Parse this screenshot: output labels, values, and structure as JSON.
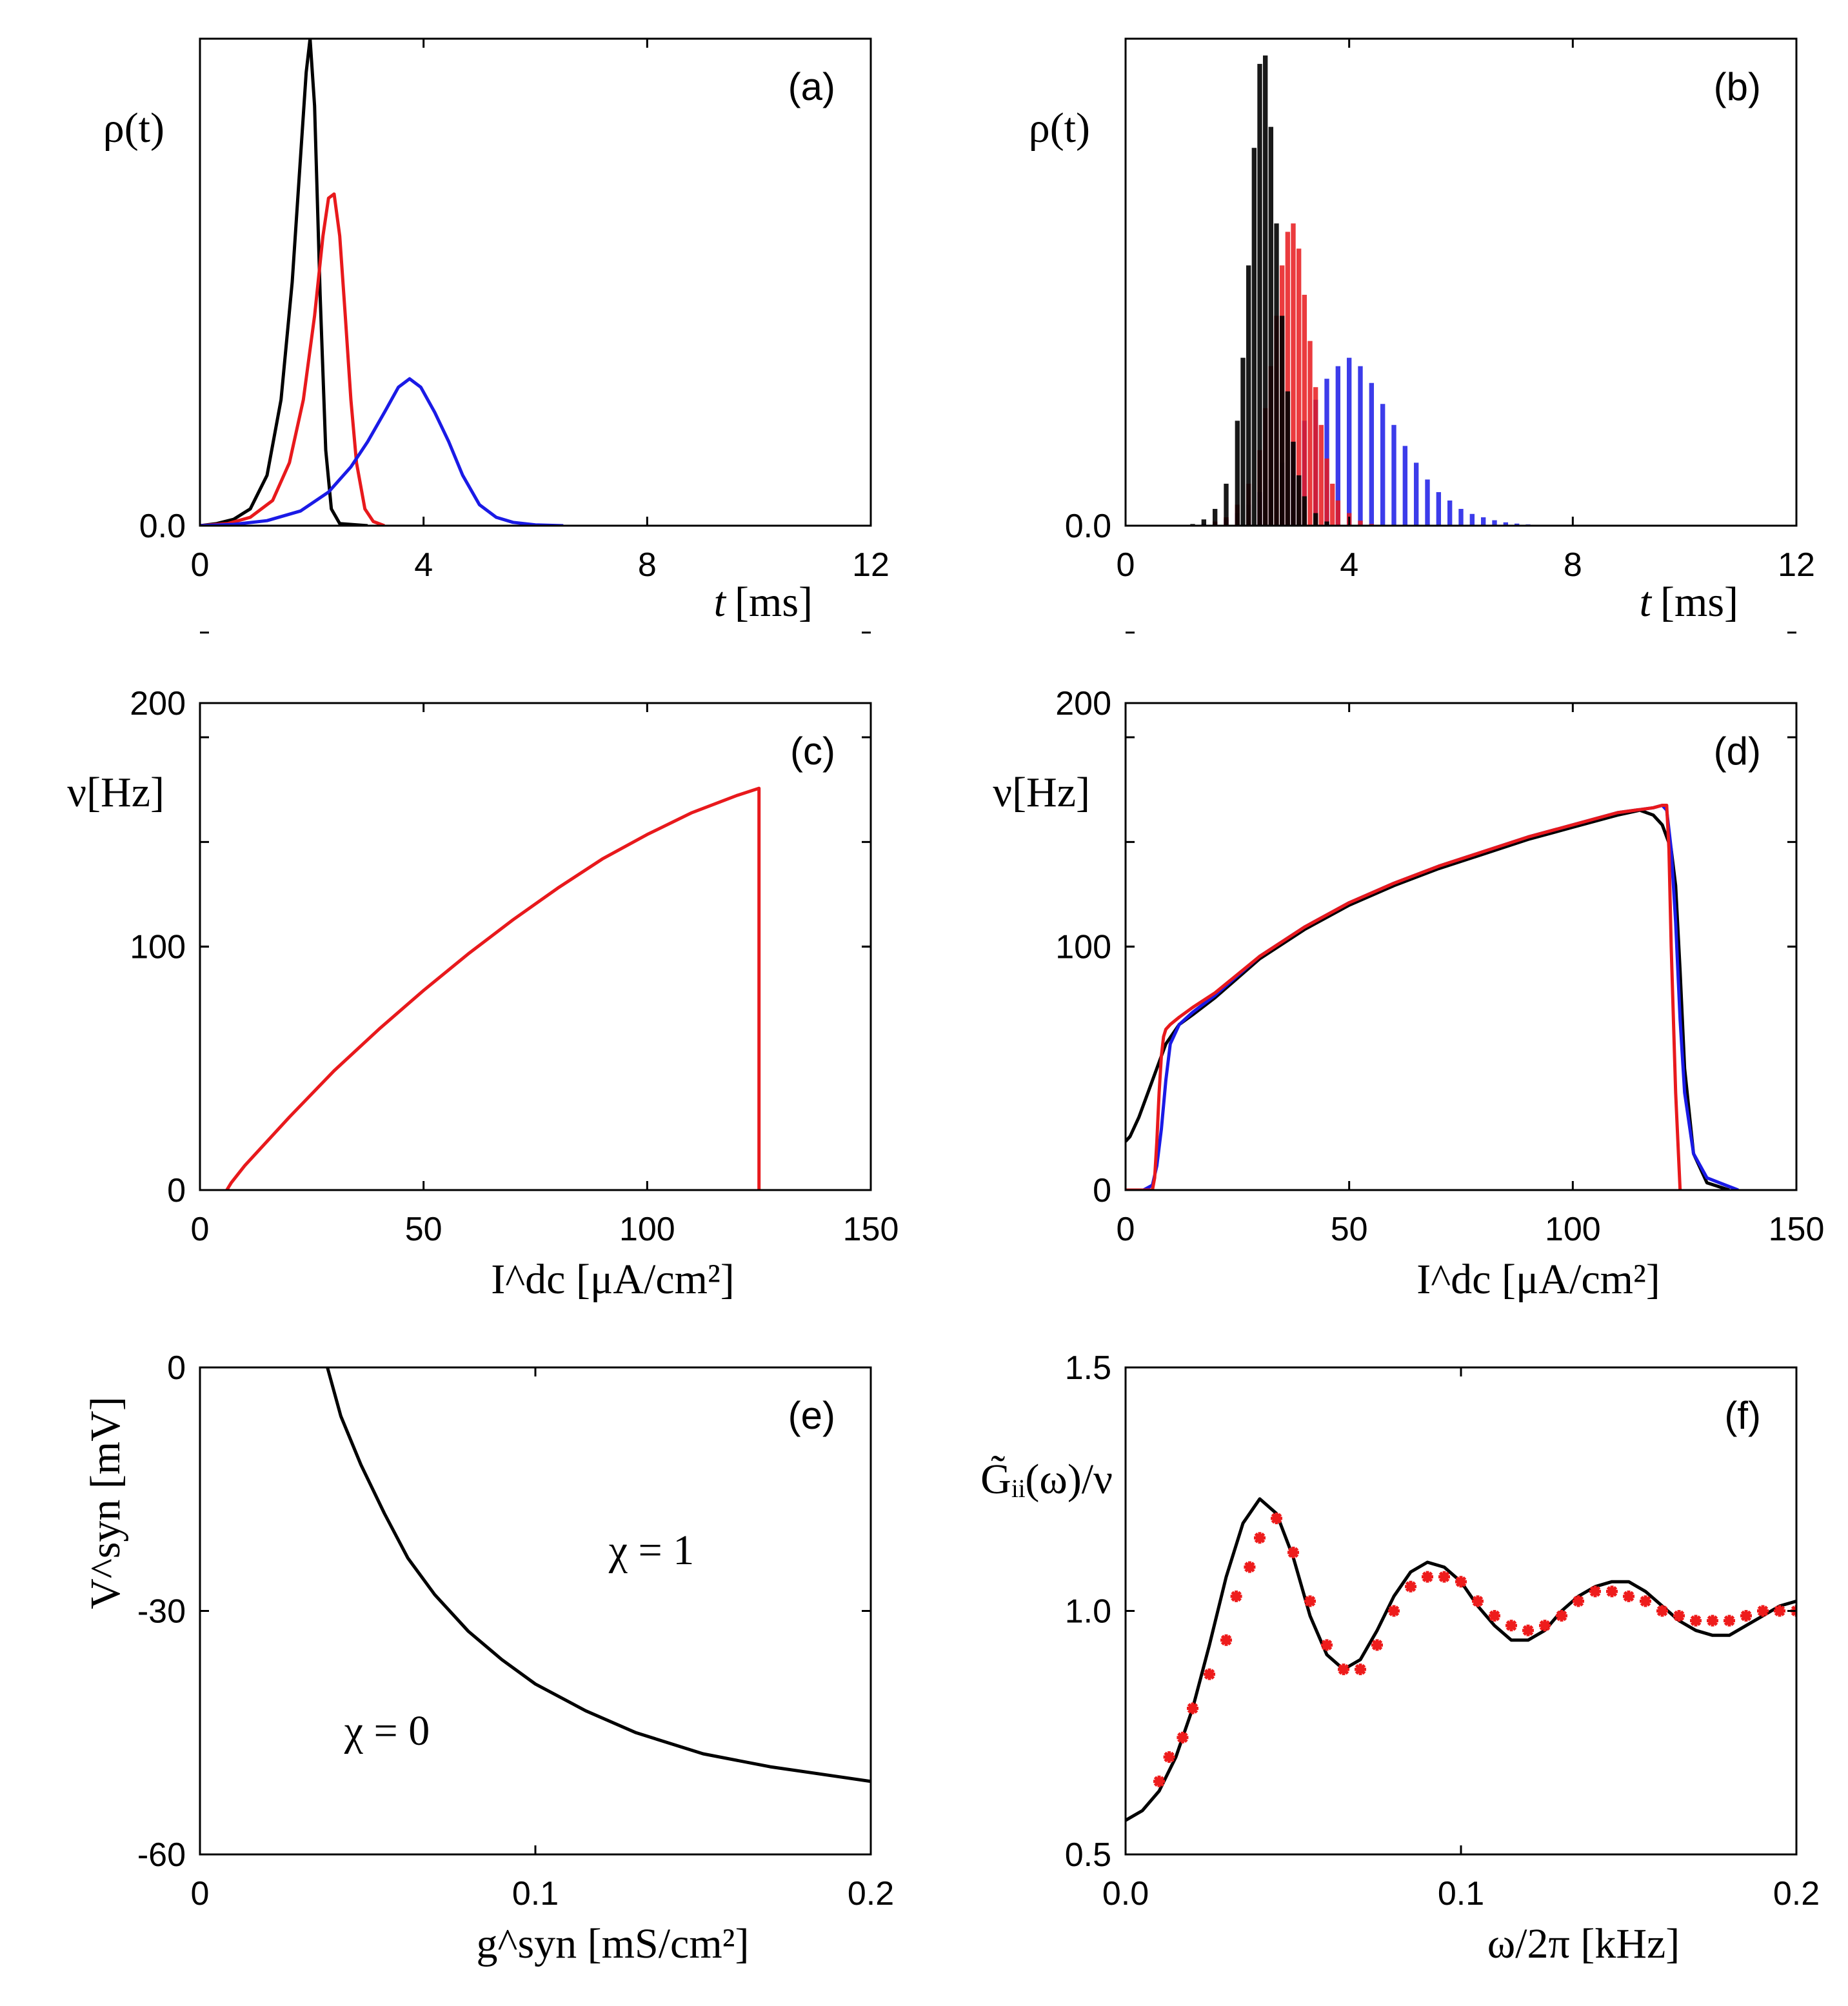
{
  "colors": {
    "black": "#000000",
    "red": "#e8191c",
    "blue": "#1a1ae6",
    "marker_red": "#ee1c1c"
  },
  "chart_data": [
    {
      "id": "a",
      "type": "line",
      "panel_label": "(a)",
      "ylabel": "ρ(t)",
      "xlabel_var": "t",
      "xlabel_unit": "[ms]",
      "xlim": [
        0,
        12
      ],
      "ylim": [
        0,
        1.16
      ],
      "xticks": [
        0,
        4,
        8,
        12
      ],
      "yticks": [
        0.0
      ],
      "ytick_labels": [
        "0.0"
      ],
      "series": [
        {
          "color": "black",
          "x": [
            0,
            0.3,
            0.6,
            0.9,
            1.2,
            1.45,
            1.65,
            1.8,
            1.9,
            1.97,
            2.05,
            2.15,
            2.25,
            2.35,
            2.5,
            3.0
          ],
          "y": [
            0,
            0.005,
            0.015,
            0.04,
            0.12,
            0.3,
            0.58,
            0.88,
            1.08,
            1.16,
            1.0,
            0.55,
            0.18,
            0.04,
            0.005,
            0
          ]
        },
        {
          "color": "red",
          "x": [
            0,
            0.5,
            0.9,
            1.3,
            1.6,
            1.85,
            2.05,
            2.2,
            2.3,
            2.4,
            2.5,
            2.6,
            2.7,
            2.8,
            2.95,
            3.1,
            3.3
          ],
          "y": [
            0,
            0.005,
            0.02,
            0.06,
            0.15,
            0.3,
            0.5,
            0.69,
            0.78,
            0.79,
            0.69,
            0.5,
            0.3,
            0.15,
            0.04,
            0.01,
            0
          ]
        },
        {
          "color": "blue",
          "x": [
            0,
            0.6,
            1.2,
            1.8,
            2.3,
            2.7,
            3.0,
            3.3,
            3.55,
            3.75,
            3.95,
            4.2,
            4.45,
            4.7,
            5.0,
            5.3,
            5.6,
            6.0,
            6.5
          ],
          "y": [
            0,
            0.003,
            0.012,
            0.035,
            0.08,
            0.14,
            0.2,
            0.27,
            0.33,
            0.35,
            0.33,
            0.27,
            0.2,
            0.12,
            0.05,
            0.02,
            0.008,
            0.002,
            0
          ]
        }
      ]
    },
    {
      "id": "b",
      "type": "bar",
      "panel_label": "(b)",
      "ylabel": "ρ(t)",
      "xlabel_var": "t",
      "xlabel_unit": "[ms]",
      "xlim": [
        0,
        12
      ],
      "ylim": [
        0,
        1.16
      ],
      "xticks": [
        0,
        4,
        8,
        12
      ],
      "yticks": [
        0.0
      ],
      "ytick_labels": [
        "0.0"
      ],
      "series": [
        {
          "color": "blue",
          "x": [
            1.2,
            1.4,
            1.6,
            1.8,
            2.0,
            2.2,
            2.4,
            2.6,
            2.8,
            3.0,
            3.2,
            3.4,
            3.6,
            3.8,
            4.0,
            4.2,
            4.4,
            4.6,
            4.8,
            5.0,
            5.2,
            5.4,
            5.6,
            5.8,
            6.0,
            6.2,
            6.4,
            6.6,
            6.8,
            7.0,
            7.2
          ],
          "y": [
            0.002,
            0.004,
            0.008,
            0.015,
            0.03,
            0.05,
            0.08,
            0.11,
            0.15,
            0.2,
            0.25,
            0.3,
            0.35,
            0.38,
            0.4,
            0.38,
            0.34,
            0.29,
            0.24,
            0.19,
            0.15,
            0.11,
            0.08,
            0.06,
            0.04,
            0.028,
            0.02,
            0.013,
            0.008,
            0.005,
            0.003
          ]
        },
        {
          "color": "red",
          "x": [
            1.4,
            1.6,
            1.8,
            2.0,
            2.2,
            2.4,
            2.5,
            2.6,
            2.7,
            2.8,
            2.9,
            3.0,
            3.1,
            3.2,
            3.3,
            3.4,
            3.5,
            3.6,
            3.7,
            3.8,
            4.0,
            4.2,
            4.4
          ],
          "y": [
            0.003,
            0.01,
            0.02,
            0.05,
            0.1,
            0.18,
            0.28,
            0.38,
            0.5,
            0.62,
            0.7,
            0.72,
            0.66,
            0.55,
            0.44,
            0.33,
            0.24,
            0.16,
            0.1,
            0.06,
            0.03,
            0.012,
            0.004
          ]
        },
        {
          "color": "black",
          "x": [
            1.2,
            1.4,
            1.6,
            1.8,
            2.0,
            2.1,
            2.2,
            2.3,
            2.4,
            2.5,
            2.6,
            2.7,
            2.8,
            2.9,
            3.0,
            3.1,
            3.2,
            3.4,
            3.6
          ],
          "y": [
            0.004,
            0.015,
            0.04,
            0.1,
            0.25,
            0.4,
            0.62,
            0.9,
            1.1,
            1.12,
            0.95,
            0.72,
            0.5,
            0.32,
            0.2,
            0.12,
            0.07,
            0.03,
            0.01
          ]
        }
      ]
    },
    {
      "id": "c",
      "type": "line",
      "panel_label": "(c)",
      "ylabel": "ν[Hz]",
      "xlabel": "I^dc [μA/cm²]",
      "xlim": [
        0,
        150
      ],
      "ylim": [
        0,
        200
      ],
      "xticks": [
        0,
        50,
        100,
        150
      ],
      "yticks": [
        0,
        100,
        200
      ],
      "series": [
        {
          "color": "red",
          "x": [
            6,
            7,
            10,
            20,
            30,
            40,
            50,
            60,
            70,
            80,
            90,
            100,
            110,
            120,
            125,
            125
          ],
          "y": [
            0,
            3,
            10,
            30,
            49,
            66,
            82,
            97,
            111,
            124,
            136,
            146,
            155,
            162,
            165,
            0
          ]
        }
      ]
    },
    {
      "id": "d",
      "type": "line",
      "panel_label": "(d)",
      "ylabel": "ν[Hz]",
      "xlabel": "I^dc [μA/cm²]",
      "xlim": [
        0,
        150
      ],
      "ylim": [
        0,
        200
      ],
      "xticks": [
        0,
        50,
        100,
        150
      ],
      "yticks": [
        0,
        100,
        200
      ],
      "series": [
        {
          "color": "black",
          "x": [
            0,
            1,
            3,
            5,
            7,
            9,
            12,
            15,
            20,
            30,
            40,
            50,
            60,
            70,
            80,
            90,
            100,
            110,
            115,
            118,
            120,
            122,
            123,
            124,
            125,
            127,
            130,
            135
          ],
          "y": [
            20,
            22,
            30,
            40,
            50,
            60,
            68,
            72,
            79,
            95,
            107,
            117,
            125,
            132,
            138,
            144,
            149,
            154,
            156,
            154,
            150,
            140,
            125,
            90,
            50,
            15,
            3,
            0
          ]
        },
        {
          "color": "blue",
          "x": [
            0,
            4,
            6,
            7,
            8,
            9,
            10,
            12,
            15,
            20,
            30,
            40,
            50,
            60,
            70,
            80,
            90,
            100,
            110,
            118,
            120,
            121,
            122,
            123,
            124,
            125,
            127,
            130,
            137
          ],
          "y": [
            0,
            0,
            2,
            10,
            25,
            45,
            60,
            68,
            73,
            80,
            96,
            108,
            118,
            126,
            133,
            139,
            145,
            150,
            155,
            157,
            158,
            156,
            140,
            110,
            70,
            40,
            15,
            5,
            0
          ]
        },
        {
          "color": "red",
          "x": [
            0,
            6,
            6.5,
            7,
            7.5,
            8,
            8.5,
            9,
            10,
            12,
            15,
            20,
            30,
            40,
            50,
            60,
            70,
            80,
            90,
            100,
            110,
            118,
            120,
            121,
            121.5,
            122,
            123,
            124
          ],
          "y": [
            0,
            0,
            5,
            20,
            40,
            55,
            63,
            66,
            68,
            71,
            75,
            81,
            96,
            108,
            118,
            126,
            133,
            139,
            145,
            150,
            155,
            157,
            158,
            158,
            140,
            100,
            40,
            0
          ]
        }
      ]
    },
    {
      "id": "e",
      "type": "line",
      "panel_label": "(e)",
      "ylabel": "V^syn [mV]",
      "xlabel": "g^syn [mS/cm²]",
      "xlim": [
        0,
        0.2
      ],
      "ylim": [
        -60,
        0
      ],
      "xticks": [
        0,
        0.1,
        0.2
      ],
      "xtick_labels": [
        "0",
        "0.1",
        "0.2"
      ],
      "yticks": [
        0,
        -30,
        -60
      ],
      "ytick_labels": [
        "0",
        "-30",
        "-60"
      ],
      "annotations": [
        "χ = 1",
        "χ = 0"
      ],
      "series": [
        {
          "color": "black",
          "x": [
            0.038,
            0.042,
            0.048,
            0.055,
            0.062,
            0.07,
            0.08,
            0.09,
            0.1,
            0.115,
            0.13,
            0.15,
            0.17,
            0.19,
            0.2
          ],
          "y": [
            0,
            -6,
            -12,
            -18,
            -23.5,
            -28,
            -32.5,
            -36,
            -39,
            -42.3,
            -45,
            -47.6,
            -49.2,
            -50.4,
            -51
          ]
        }
      ]
    },
    {
      "id": "f",
      "type": "line",
      "panel_label": "(f)",
      "ylabel": "G̃ᵢᵢ(ω)/ν",
      "xlabel": "ω/2π [kHz]",
      "xlim": [
        0,
        0.2
      ],
      "ylim": [
        0.5,
        1.5
      ],
      "xticks": [
        0,
        0.1,
        0.2
      ],
      "xtick_labels": [
        "0.0",
        "0.1",
        "0.2"
      ],
      "yticks": [
        0.5,
        1.0,
        1.5
      ],
      "ytick_labels": [
        "0.5",
        "1.0",
        "1.5"
      ],
      "series": [
        {
          "color": "black",
          "style": "line",
          "x": [
            0,
            0.005,
            0.01,
            0.015,
            0.02,
            0.025,
            0.03,
            0.035,
            0.04,
            0.045,
            0.05,
            0.055,
            0.06,
            0.065,
            0.07,
            0.075,
            0.08,
            0.085,
            0.09,
            0.095,
            0.1,
            0.105,
            0.11,
            0.115,
            0.12,
            0.125,
            0.13,
            0.135,
            0.14,
            0.145,
            0.15,
            0.155,
            0.16,
            0.165,
            0.17,
            0.175,
            0.18,
            0.185,
            0.19,
            0.195,
            0.2
          ],
          "y": [
            0.57,
            0.59,
            0.63,
            0.7,
            0.8,
            0.93,
            1.07,
            1.18,
            1.23,
            1.2,
            1.11,
            0.99,
            0.91,
            0.88,
            0.9,
            0.96,
            1.03,
            1.08,
            1.1,
            1.09,
            1.06,
            1.01,
            0.97,
            0.94,
            0.94,
            0.96,
            1.0,
            1.03,
            1.05,
            1.06,
            1.06,
            1.04,
            1.01,
            0.98,
            0.96,
            0.95,
            0.95,
            0.97,
            0.99,
            1.01,
            1.02
          ]
        },
        {
          "color": "marker_red",
          "style": "marker",
          "x": [
            0.01,
            0.013,
            0.017,
            0.02,
            0.025,
            0.03,
            0.033,
            0.037,
            0.04,
            0.045,
            0.05,
            0.055,
            0.06,
            0.065,
            0.07,
            0.075,
            0.08,
            0.085,
            0.09,
            0.095,
            0.1,
            0.105,
            0.11,
            0.115,
            0.12,
            0.125,
            0.13,
            0.135,
            0.14,
            0.145,
            0.15,
            0.155,
            0.16,
            0.165,
            0.17,
            0.175,
            0.18,
            0.185,
            0.19,
            0.195,
            0.2
          ],
          "y": [
            0.65,
            0.7,
            0.74,
            0.8,
            0.87,
            0.94,
            1.03,
            1.09,
            1.15,
            1.19,
            1.12,
            1.02,
            0.93,
            0.88,
            0.88,
            0.93,
            1.0,
            1.05,
            1.07,
            1.07,
            1.06,
            1.02,
            0.99,
            0.97,
            0.96,
            0.97,
            0.99,
            1.02,
            1.04,
            1.04,
            1.03,
            1.02,
            1.0,
            0.99,
            0.98,
            0.98,
            0.98,
            0.99,
            1.0,
            1.0,
            1.0
          ]
        }
      ]
    }
  ]
}
